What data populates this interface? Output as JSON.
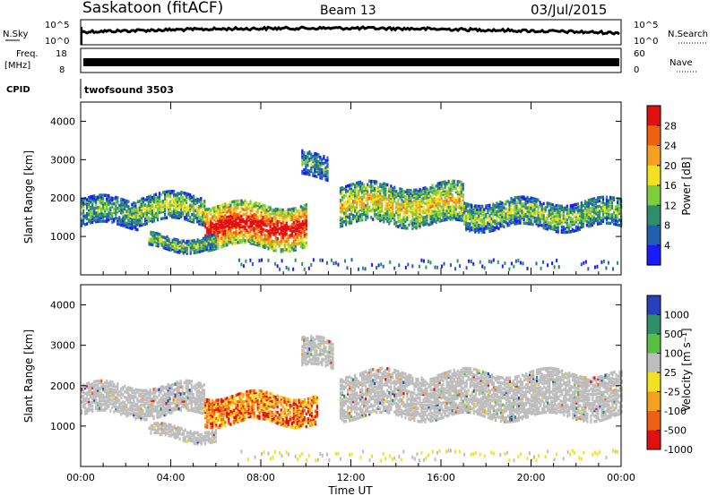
{
  "header": {
    "station": "Saskatoon (fitACF)",
    "beam": "Beam 13",
    "date": "03/Jul/2015"
  },
  "strip_labels": {
    "nsky": "N.Sky",
    "nsky_top": "10^5",
    "nsky_bottom": "10^0",
    "nsearch": "N.Search",
    "nsearch_top": "10^5",
    "nsearch_bottom": "10^0",
    "freq": "Freq.",
    "freq_unit": "[MHz]",
    "freq_top": "18",
    "freq_bottom": "8",
    "nave": "Nave",
    "nave_top": "60",
    "nave_bottom": "0",
    "cpid": "CPID",
    "cpid_value": "twofsound 3503"
  },
  "chart_data": [
    {
      "type": "heatmap",
      "panel": "power",
      "ylabel": "Slant Range [km]",
      "ylim": [
        0,
        4500
      ],
      "yticks": [
        1000,
        2000,
        3000,
        4000
      ],
      "xticks": [
        "00:00",
        "04:00",
        "08:00",
        "12:00",
        "16:00",
        "20:00",
        "00:00"
      ],
      "xlim_hours": [
        0,
        24
      ],
      "colorbar": {
        "label": "Power [dB]",
        "ticks": [
          "4",
          "8",
          "12",
          "16",
          "20",
          "24",
          "28"
        ],
        "colors": [
          "#1a1aff",
          "#2060b0",
          "#2f8f6a",
          "#7ccf3a",
          "#f3e020",
          "#f5a020",
          "#f06010",
          "#e01010"
        ]
      },
      "bands": [
        {
          "t0": 0.0,
          "t1": 2.5,
          "r0": 1250,
          "r1": 1950,
          "level": 0.35
        },
        {
          "t0": 2.5,
          "t1": 5.5,
          "r0": 1350,
          "r1": 2050,
          "level": 0.45
        },
        {
          "t0": 5.5,
          "t1": 10.0,
          "r0": 700,
          "r1": 1800,
          "level": 0.9
        },
        {
          "t0": 3.0,
          "t1": 6.0,
          "r0": 650,
          "r1": 1000,
          "level": 0.4
        },
        {
          "t0": 9.8,
          "t1": 11.0,
          "r0": 2500,
          "r1": 3100,
          "level": 0.3
        },
        {
          "t0": 11.5,
          "t1": 17.0,
          "r0": 1300,
          "r1": 2300,
          "level": 0.55
        },
        {
          "t0": 17.0,
          "t1": 24.0,
          "r0": 1200,
          "r1": 1900,
          "level": 0.4
        }
      ]
    },
    {
      "type": "heatmap",
      "panel": "velocity",
      "ylabel": "Slant Range [km]",
      "ylim": [
        0,
        4500
      ],
      "yticks": [
        1000,
        2000,
        3000,
        4000
      ],
      "xticks": [
        "00:00",
        "04:00",
        "08:00",
        "12:00",
        "16:00",
        "20:00",
        "00:00"
      ],
      "xlabel": "Time UT",
      "xlim_hours": [
        0,
        24
      ],
      "colorbar": {
        "label": "Velocity [m s⁻¹]",
        "ticks": [
          "1000",
          "500",
          "100",
          "25",
          "-25",
          "-100",
          "-500",
          "-1000"
        ],
        "colors": [
          "#2840c0",
          "#2f8f6a",
          "#58c040",
          "#bdbdbd",
          "#f3e020",
          "#f5a020",
          "#f06010",
          "#e01010"
        ]
      },
      "bands": [
        {
          "t0": 0.0,
          "t1": 5.5,
          "r0": 1250,
          "r1": 2000,
          "color": "gray"
        },
        {
          "t0": 5.5,
          "t1": 10.5,
          "r0": 1050,
          "r1": 1750,
          "color": "orange"
        },
        {
          "t0": 3.0,
          "t1": 6.0,
          "r0": 650,
          "r1": 950,
          "color": "gray"
        },
        {
          "t0": 9.8,
          "t1": 11.2,
          "r0": 2400,
          "r1": 3100,
          "color": "gray"
        },
        {
          "t0": 11.5,
          "t1": 24.0,
          "r0": 1200,
          "r1": 2300,
          "color": "gray"
        }
      ]
    }
  ],
  "axis_labels": {
    "ylabel": "Slant Range [km]",
    "xlabel": "Time UT",
    "power_cb": "Power [dB]",
    "velocity_cb": "Velocity [m s⁻¹]"
  }
}
